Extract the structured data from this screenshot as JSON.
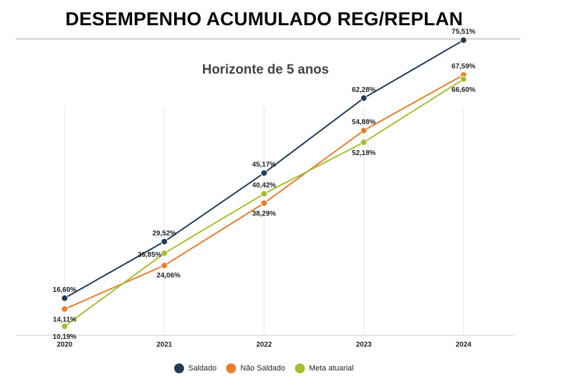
{
  "header": {
    "title": "DESEMPENHO ACUMULADO REG/REPLAN"
  },
  "chart_data": {
    "type": "line",
    "subtitle": "Horizonte de 5 anos",
    "categories": [
      "2020",
      "2021",
      "2022",
      "2023",
      "2024"
    ],
    "series": [
      {
        "name": "Saldado",
        "color": "#1f3b57",
        "values": [
          16.6,
          29.52,
          45.17,
          62.28,
          75.51
        ],
        "labels": [
          "16,60%",
          "29,52%",
          "45,17%",
          "62,28%",
          "75,51%"
        ]
      },
      {
        "name": "Não Saldado",
        "color": "#ea7d2c",
        "values": [
          14.11,
          24.06,
          38.29,
          54.88,
          67.59
        ],
        "labels": [
          "14,11%",
          "24,06%",
          "38,29%",
          "54,88%",
          "67,59%"
        ]
      },
      {
        "name": "Meta atuarial",
        "color": "#a3bf2f",
        "values": [
          10.19,
          26.85,
          40.42,
          52.18,
          66.6
        ],
        "labels": [
          "10,19%",
          "26,85%",
          "40,42%",
          "52,18%",
          "66,60%"
        ]
      }
    ],
    "grid": "vertical",
    "legend": "bottom-center"
  }
}
